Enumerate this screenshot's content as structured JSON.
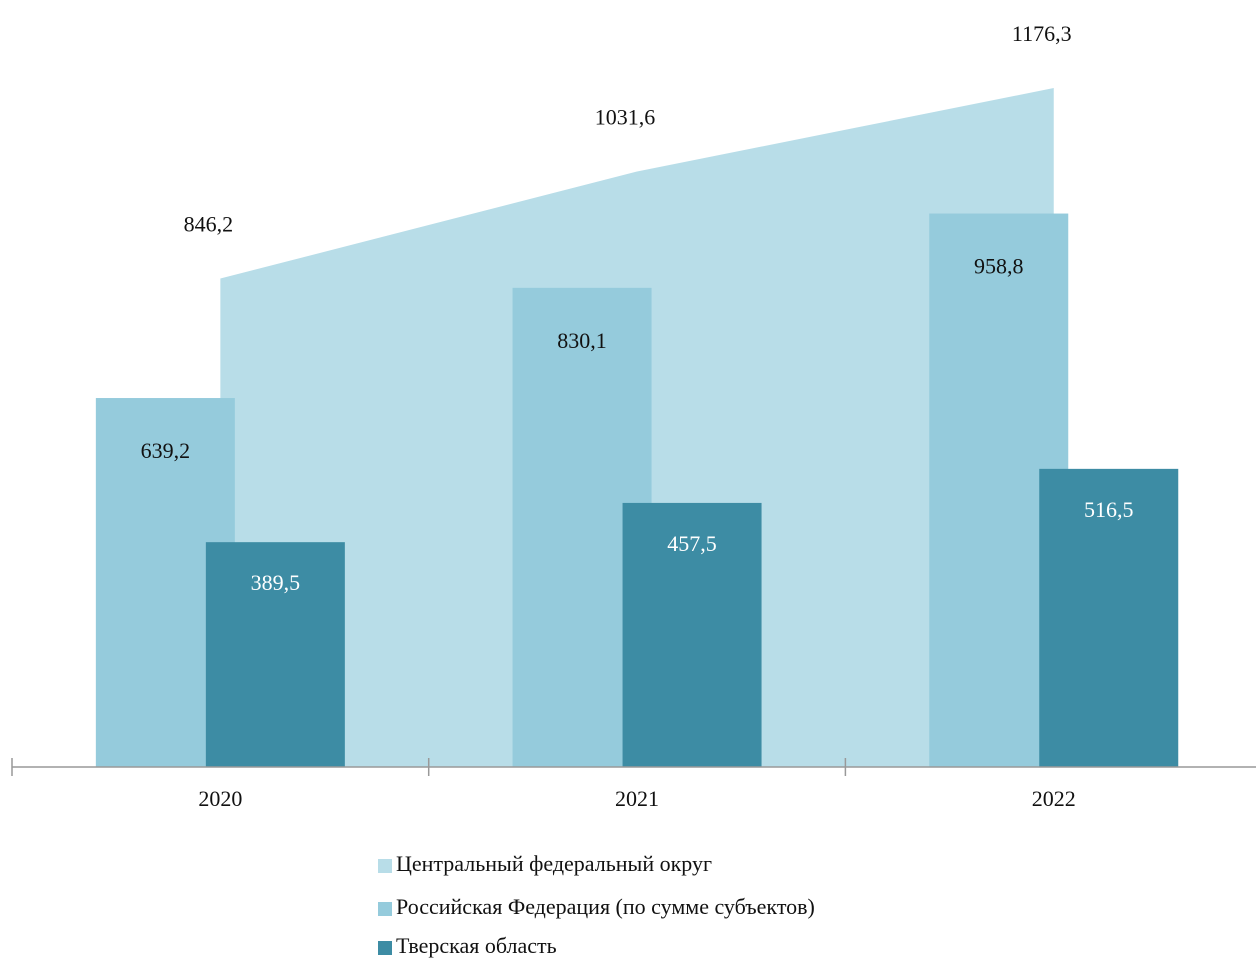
{
  "chart_data": {
    "type": "area-bar",
    "categories": [
      "2020",
      "2021",
      "2022"
    ],
    "series": [
      {
        "name": "Центральный федеральный округ",
        "color": "#b8dde8",
        "values": [
          846.2,
          1031.6,
          1176.3
        ],
        "value_labels": [
          "846,2",
          "1031,6",
          "1176,3"
        ]
      },
      {
        "name": "Российская Федерация (по сумме субъектов)",
        "color": "#95cbdc",
        "values": [
          639.2,
          830.1,
          958.8
        ],
        "value_labels": [
          "639,2",
          "830,1",
          "958,8"
        ]
      },
      {
        "name": "Тверская область",
        "color": "#3d8ca4",
        "values": [
          389.5,
          457.5,
          516.5
        ],
        "value_labels": [
          "389,5",
          "457,5",
          "516,5"
        ]
      }
    ]
  }
}
